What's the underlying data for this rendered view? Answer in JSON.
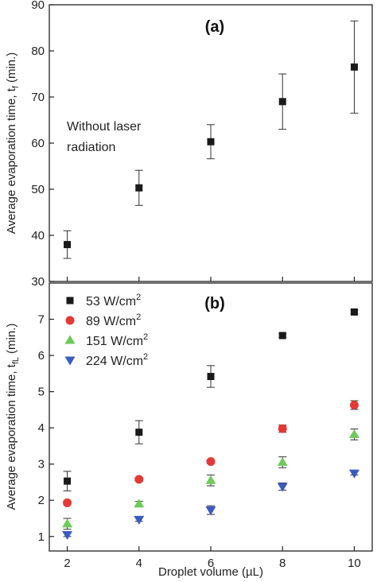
{
  "chart_data": [
    {
      "type": "scatter",
      "panel_label": "(a)",
      "ylabel": "Average evaporation time, t",
      "ylabel_sub": "f",
      "ylabel_unit": "(min.)",
      "ylim": [
        30,
        90
      ],
      "yticks": [
        30,
        40,
        50,
        60,
        70,
        80,
        90
      ],
      "xlim": [
        1.5,
        10.5
      ],
      "xticks": [
        2,
        4,
        6,
        8,
        10
      ],
      "annotation": [
        "Without laser",
        "radiation"
      ],
      "series": [
        {
          "marker": "square",
          "color": "#1a1a1a",
          "x": [
            2,
            4,
            6,
            8,
            10
          ],
          "y": [
            38,
            50.3,
            60.3,
            69,
            76.5
          ],
          "err": [
            3,
            3.8,
            3.7,
            6,
            10
          ]
        }
      ]
    },
    {
      "type": "scatter",
      "panel_label": "(b)",
      "ylabel": "Average evaporation time, t",
      "ylabel_sub": "fL",
      "ylabel_unit": "(min.)",
      "ylim": [
        0.6,
        8
      ],
      "yticks": [
        1,
        2,
        3,
        4,
        5,
        6,
        7
      ],
      "xlim": [
        1.5,
        10.5
      ],
      "xticks": [
        2,
        4,
        6,
        8,
        10
      ],
      "xlabel": "Droplet volume (µL)",
      "legend_position": "top-left",
      "series": [
        {
          "name": "53 W/cm",
          "name_sup": "2",
          "marker": "square",
          "color": "#1a1a1a",
          "x": [
            2,
            4,
            6,
            8,
            10
          ],
          "y": [
            2.53,
            3.88,
            5.42,
            6.55,
            7.2
          ],
          "err": [
            0.27,
            0.32,
            0.3,
            0.05,
            0.05
          ]
        },
        {
          "name": "89 W/cm",
          "name_sup": "2",
          "marker": "circle",
          "color": "#e53935",
          "x": [
            2,
            4,
            6,
            8,
            10
          ],
          "y": [
            1.93,
            2.58,
            3.07,
            3.98,
            4.63
          ],
          "err": [
            0.05,
            0.05,
            0.05,
            0.1,
            0.12
          ]
        },
        {
          "name": "151 W/cm",
          "name_sup": "2",
          "marker": "triangle-up",
          "color": "#6ccb57",
          "x": [
            2,
            4,
            6,
            8,
            10
          ],
          "y": [
            1.35,
            1.9,
            2.55,
            3.05,
            3.82
          ],
          "err": [
            0.15,
            0.07,
            0.15,
            0.15,
            0.15
          ]
        },
        {
          "name": "224 W/cm",
          "name_sup": "2",
          "marker": "triangle-down",
          "color": "#3a5bbf",
          "x": [
            2,
            4,
            6,
            8,
            10
          ],
          "y": [
            1.05,
            1.47,
            1.73,
            2.38,
            2.75
          ],
          "err": [
            0.05,
            0.05,
            0.12,
            0.1,
            0.05
          ]
        }
      ]
    }
  ]
}
